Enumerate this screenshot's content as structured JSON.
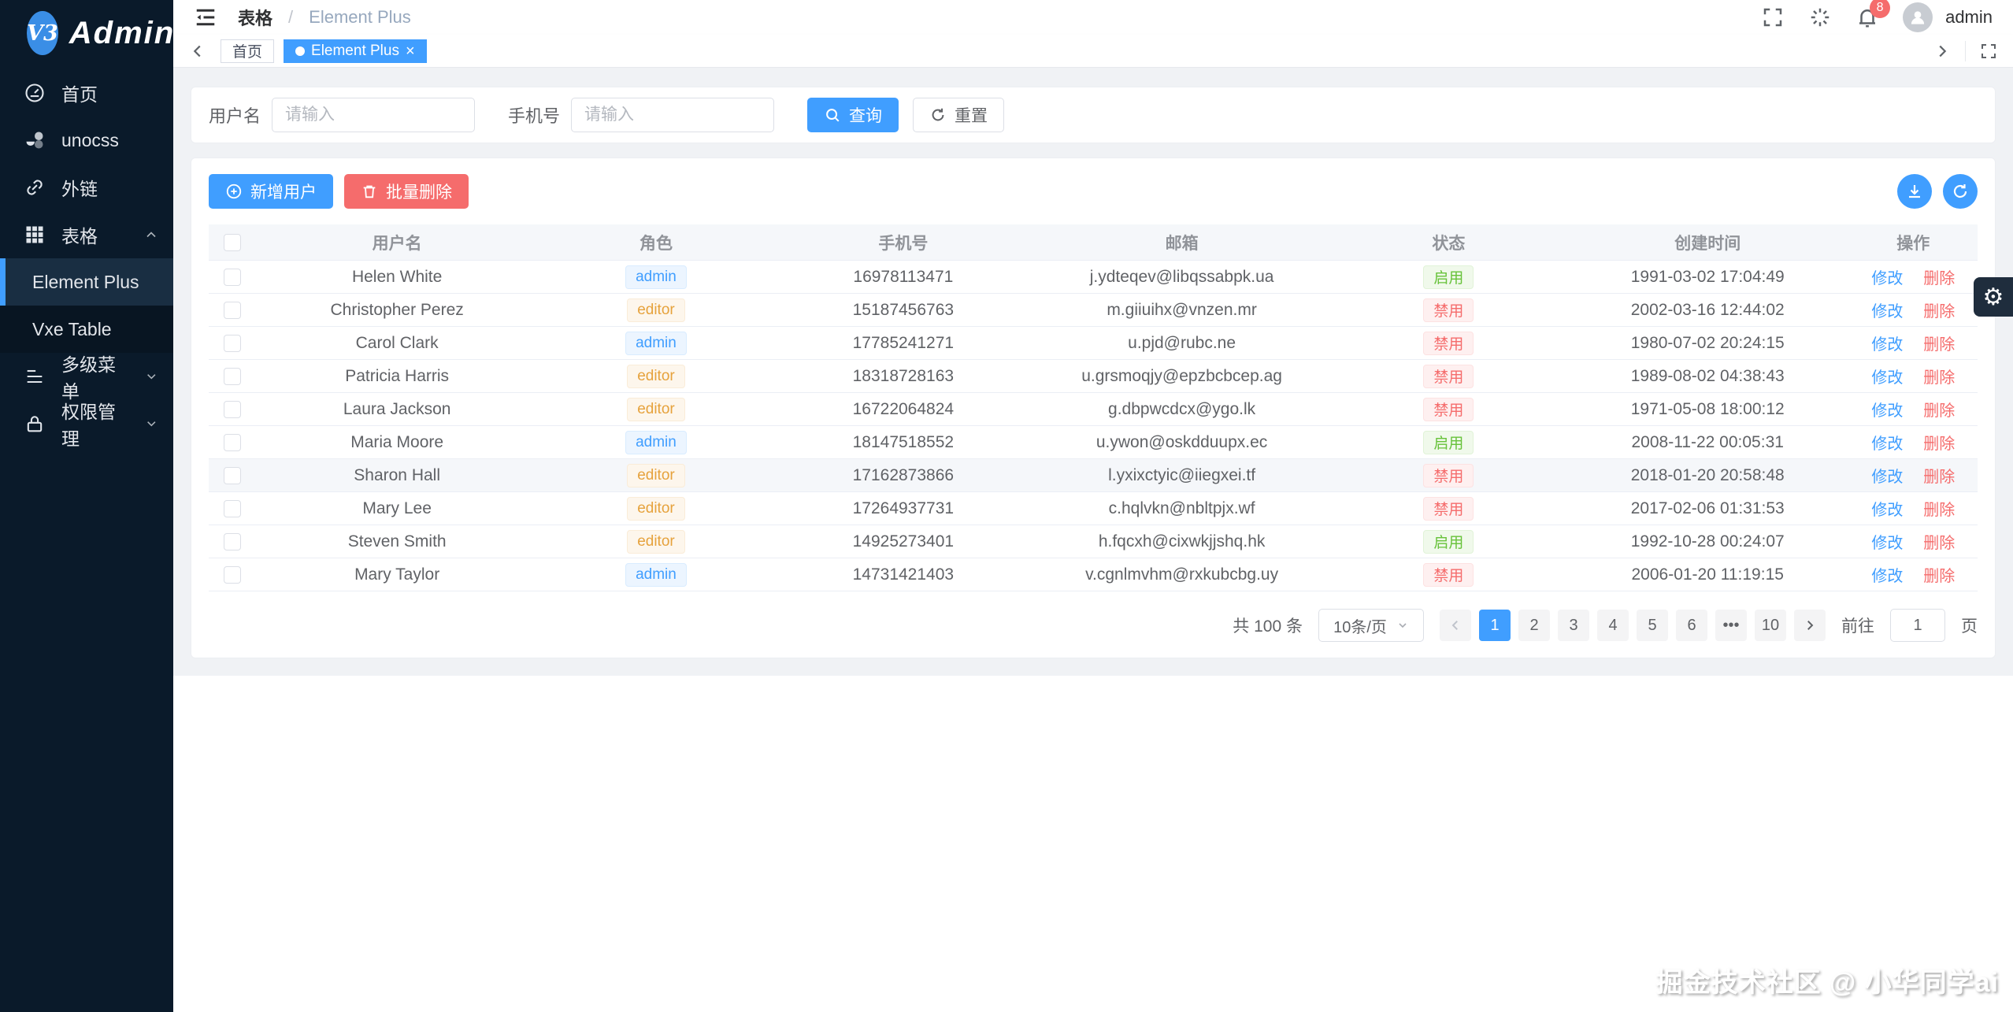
{
  "colors": {
    "primary": "#409eff",
    "danger": "#f56c6c",
    "success": "#67c23a",
    "warning": "#e6a23c",
    "sidebar_bg": "#0a1a2a"
  },
  "app": {
    "logo_badge": "V3",
    "logo_text": "Admin"
  },
  "sidebar": {
    "items": [
      {
        "label": "首页",
        "icon": "dashboard-icon"
      },
      {
        "label": "unocss",
        "icon": "unocss-icon"
      },
      {
        "label": "外链",
        "icon": "link-icon"
      },
      {
        "label": "表格",
        "icon": "table-icon",
        "expanded": true,
        "children": [
          {
            "label": "Element Plus",
            "active": true
          },
          {
            "label": "Vxe Table",
            "active": false
          }
        ]
      },
      {
        "label": "多级菜单",
        "icon": "list-icon",
        "collapsed": true
      },
      {
        "label": "权限管理",
        "icon": "lock-icon",
        "collapsed": true
      }
    ]
  },
  "navbar": {
    "breadcrumb_parent": "表格",
    "breadcrumb_separator": "/",
    "breadcrumb_current": "Element Plus",
    "notification_count": "8",
    "username": "admin"
  },
  "tabs": {
    "home": "首页",
    "current": "Element Plus",
    "close": "×"
  },
  "search": {
    "username_label": "用户名",
    "phone_label": "手机号",
    "placeholder": "请输入",
    "query_label": "查询",
    "reset_label": "重置"
  },
  "toolbar": {
    "add_label": "新增用户",
    "batch_delete_label": "批量删除"
  },
  "table": {
    "columns": [
      "用户名",
      "角色",
      "手机号",
      "邮箱",
      "状态",
      "创建时间",
      "操作"
    ],
    "edit_label": "修改",
    "delete_label": "删除",
    "rows": [
      {
        "name": "Helen White",
        "role": "admin",
        "role_type": "blue",
        "phone": "16978113471",
        "email": "j.ydteqev@libqssabpk.ua",
        "status": "启用",
        "status_type": "green",
        "created": "1991-03-02 17:04:49",
        "highlighted": false
      },
      {
        "name": "Christopher Perez",
        "role": "editor",
        "role_type": "orange",
        "phone": "15187456763",
        "email": "m.giiuihx@vnzen.mr",
        "status": "禁用",
        "status_type": "red",
        "created": "2002-03-16 12:44:02",
        "highlighted": false
      },
      {
        "name": "Carol Clark",
        "role": "admin",
        "role_type": "blue",
        "phone": "17785241271",
        "email": "u.pjd@rubc.ne",
        "status": "禁用",
        "status_type": "red",
        "created": "1980-07-02 20:24:15",
        "highlighted": false
      },
      {
        "name": "Patricia Harris",
        "role": "editor",
        "role_type": "orange",
        "phone": "18318728163",
        "email": "u.grsmoqjy@epzbcbcep.ag",
        "status": "禁用",
        "status_type": "red",
        "created": "1989-08-02 04:38:43",
        "highlighted": false
      },
      {
        "name": "Laura Jackson",
        "role": "editor",
        "role_type": "orange",
        "phone": "16722064824",
        "email": "g.dbpwcdcx@ygo.lk",
        "status": "禁用",
        "status_type": "red",
        "created": "1971-05-08 18:00:12",
        "highlighted": false
      },
      {
        "name": "Maria Moore",
        "role": "admin",
        "role_type": "blue",
        "phone": "18147518552",
        "email": "u.ywon@oskdduupx.ec",
        "status": "启用",
        "status_type": "green",
        "created": "2008-11-22 00:05:31",
        "highlighted": false
      },
      {
        "name": "Sharon Hall",
        "role": "editor",
        "role_type": "orange",
        "phone": "17162873866",
        "email": "l.yxixctyic@iiegxei.tf",
        "status": "禁用",
        "status_type": "red",
        "created": "2018-01-20 20:58:48",
        "highlighted": true
      },
      {
        "name": "Mary Lee",
        "role": "editor",
        "role_type": "orange",
        "phone": "17264937731",
        "email": "c.hqlvkn@nbltpjx.wf",
        "status": "禁用",
        "status_type": "red",
        "created": "2017-02-06 01:31:53",
        "highlighted": false
      },
      {
        "name": "Steven Smith",
        "role": "editor",
        "role_type": "orange",
        "phone": "14925273401",
        "email": "h.fqcxh@cixwkjjshq.hk",
        "status": "启用",
        "status_type": "green",
        "created": "1992-10-28 00:24:07",
        "highlighted": false
      },
      {
        "name": "Mary Taylor",
        "role": "admin",
        "role_type": "blue",
        "phone": "14731421403",
        "email": "v.cgnlmvhm@rxkubcbg.uy",
        "status": "禁用",
        "status_type": "red",
        "created": "2006-01-20 11:19:15",
        "highlighted": false
      }
    ]
  },
  "pagination": {
    "total_label": "共 100 条",
    "page_size_value": "10条/页",
    "pages": [
      "1",
      "2",
      "3",
      "4",
      "5",
      "6",
      "•••",
      "10"
    ],
    "active_page": "1",
    "goto_label": "前往",
    "goto_value": "1",
    "page_unit_label": "页"
  },
  "watermark": "掘金技术社区 @ 小华同学ai",
  "settings": {
    "gear_glyph": "⚙"
  }
}
